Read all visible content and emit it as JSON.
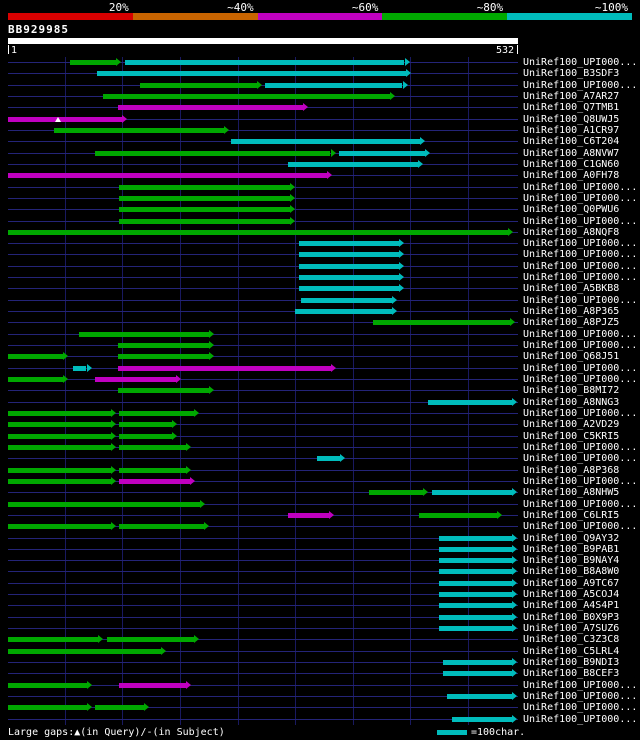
{
  "query": {
    "label": "BB929985",
    "start": "1",
    "end": "532"
  },
  "legend": {
    "gaps_text": "Large gaps:▲(in Query)/-(in Subject)",
    "scale_text": "=100char.",
    "scale_color": "#00bcbc"
  },
  "colors": {
    "green": "#00a800",
    "cyan": "#00bcbc",
    "magenta": "#c000c0"
  },
  "chart_data": {
    "type": "bar",
    "orientation": "horizontal-intervals",
    "title": "BB929985",
    "xlabel": "query position",
    "xlim": [
      1,
      532
    ],
    "grid": true,
    "gridlines": [
      60,
      120,
      180,
      240,
      300,
      360,
      420,
      480
    ],
    "identity_key": [
      {
        "label": "20%",
        "color": "#d80000"
      },
      {
        "label": "~40%",
        "color": "#c86400"
      },
      {
        "label": "~60%",
        "color": "#c000c0"
      },
      {
        "label": "~80%",
        "color": "#00a800"
      },
      {
        "label": "~100%",
        "color": "#00bcbc"
      }
    ],
    "rows": [
      {
        "label": "UniRef100_UPI000...",
        "segments": [
          {
            "color": "green",
            "start": 65,
            "end": 119
          },
          {
            "color": "cyan",
            "start": 123,
            "end": 419
          }
        ]
      },
      {
        "label": "UniRef100_B3SDF3",
        "segments": [
          {
            "color": "cyan",
            "start": 94,
            "end": 421
          }
        ]
      },
      {
        "label": "UniRef100_UPI000...",
        "segments": [
          {
            "color": "green",
            "start": 138,
            "end": 265
          },
          {
            "color": "cyan",
            "start": 269,
            "end": 417
          }
        ]
      },
      {
        "label": "UniRef100_A7AR27",
        "segments": [
          {
            "color": "green",
            "start": 100,
            "end": 404
          }
        ]
      },
      {
        "label": "UniRef100_Q7TMB1",
        "segments": [
          {
            "color": "magenta",
            "start": 115,
            "end": 313
          }
        ]
      },
      {
        "label": "UniRef100_Q8UWJ5",
        "segments": [
          {
            "color": "magenta",
            "start": 1,
            "end": 125
          }
        ],
        "gaps": [
          53
        ]
      },
      {
        "label": "UniRef100_A1CR97",
        "segments": [
          {
            "color": "green",
            "start": 49,
            "end": 231
          }
        ]
      },
      {
        "label": "UniRef100_C6T204",
        "segments": [
          {
            "color": "cyan",
            "start": 233,
            "end": 435
          }
        ]
      },
      {
        "label": "UniRef100_A8NVW7",
        "segments": [
          {
            "color": "green",
            "start": 92,
            "end": 342
          },
          {
            "color": "cyan",
            "start": 346,
            "end": 440
          }
        ]
      },
      {
        "label": "UniRef100_C1GN60",
        "segments": [
          {
            "color": "cyan",
            "start": 292,
            "end": 433
          }
        ]
      },
      {
        "label": "UniRef100_A0FH78",
        "segments": [
          {
            "color": "magenta",
            "start": 1,
            "end": 338
          }
        ]
      },
      {
        "label": "UniRef100_UPI000...",
        "segments": [
          {
            "color": "green",
            "start": 117,
            "end": 300
          }
        ]
      },
      {
        "label": "UniRef100_UPI000...",
        "segments": [
          {
            "color": "green",
            "start": 117,
            "end": 300
          }
        ]
      },
      {
        "label": "UniRef100_Q0PWU6",
        "segments": [
          {
            "color": "green",
            "start": 117,
            "end": 300
          }
        ]
      },
      {
        "label": "UniRef100_UPI000...",
        "segments": [
          {
            "color": "green",
            "start": 117,
            "end": 300
          }
        ]
      },
      {
        "label": "UniRef100_A8NQF8",
        "segments": [
          {
            "color": "green",
            "start": 1,
            "end": 527
          }
        ]
      },
      {
        "label": "UniRef100_UPI000...",
        "segments": [
          {
            "color": "cyan",
            "start": 304,
            "end": 413
          }
        ]
      },
      {
        "label": "UniRef100_UPI000...",
        "segments": [
          {
            "color": "cyan",
            "start": 304,
            "end": 413
          }
        ]
      },
      {
        "label": "UniRef100_UPI000...",
        "segments": [
          {
            "color": "cyan",
            "start": 304,
            "end": 413
          }
        ]
      },
      {
        "label": "UniRef100_UPI000...",
        "segments": [
          {
            "color": "cyan",
            "start": 304,
            "end": 413
          }
        ]
      },
      {
        "label": "UniRef100_A5BKB8",
        "segments": [
          {
            "color": "cyan",
            "start": 304,
            "end": 413
          }
        ]
      },
      {
        "label": "UniRef100_UPI000...",
        "segments": [
          {
            "color": "cyan",
            "start": 306,
            "end": 406
          }
        ]
      },
      {
        "label": "UniRef100_A8P365",
        "segments": [
          {
            "color": "cyan",
            "start": 300,
            "end": 406
          }
        ]
      },
      {
        "label": "UniRef100_A8PJZ5",
        "segments": [
          {
            "color": "green",
            "start": 381,
            "end": 529
          }
        ]
      },
      {
        "label": "UniRef100_UPI000...",
        "segments": [
          {
            "color": "green",
            "start": 75,
            "end": 215
          }
        ]
      },
      {
        "label": "UniRef100_UPI000...",
        "segments": [
          {
            "color": "green",
            "start": 115,
            "end": 215
          }
        ]
      },
      {
        "label": "UniRef100_Q68J51",
        "segments": [
          {
            "color": "green",
            "start": 1,
            "end": 63
          },
          {
            "color": "green",
            "start": 115,
            "end": 215
          }
        ]
      },
      {
        "label": "UniRef100_UPI000...",
        "segments": [
          {
            "color": "cyan",
            "start": 69,
            "end": 88
          },
          {
            "color": "magenta",
            "start": 115,
            "end": 342
          }
        ]
      },
      {
        "label": "UniRef100_UPI000...",
        "segments": [
          {
            "color": "green",
            "start": 1,
            "end": 63
          },
          {
            "color": "magenta",
            "start": 92,
            "end": 181
          }
        ]
      },
      {
        "label": "UniRef100_B8MI72",
        "segments": [
          {
            "color": "green",
            "start": 115,
            "end": 215
          }
        ]
      },
      {
        "label": "UniRef100_A8NNG3",
        "segments": [
          {
            "color": "cyan",
            "start": 438,
            "end": 531
          }
        ]
      },
      {
        "label": "UniRef100_UPI000...",
        "segments": [
          {
            "color": "green",
            "start": 1,
            "end": 113
          },
          {
            "color": "green",
            "start": 117,
            "end": 200
          }
        ]
      },
      {
        "label": "UniRef100_A2VD29",
        "segments": [
          {
            "color": "green",
            "start": 1,
            "end": 113
          },
          {
            "color": "green",
            "start": 117,
            "end": 177
          }
        ]
      },
      {
        "label": "UniRef100_C5KRI5",
        "segments": [
          {
            "color": "green",
            "start": 1,
            "end": 113
          },
          {
            "color": "green",
            "start": 117,
            "end": 177
          }
        ]
      },
      {
        "label": "UniRef100_UPI000...",
        "segments": [
          {
            "color": "green",
            "start": 1,
            "end": 113
          },
          {
            "color": "green",
            "start": 117,
            "end": 192
          }
        ]
      },
      {
        "label": "UniRef100_UPI000...",
        "segments": [
          {
            "color": "cyan",
            "start": 323,
            "end": 352
          }
        ]
      },
      {
        "label": "UniRef100_A8P368",
        "segments": [
          {
            "color": "green",
            "start": 1,
            "end": 113
          },
          {
            "color": "green",
            "start": 117,
            "end": 192
          }
        ]
      },
      {
        "label": "UniRef100_UPI000...",
        "segments": [
          {
            "color": "green",
            "start": 1,
            "end": 113
          },
          {
            "color": "magenta",
            "start": 117,
            "end": 196
          }
        ]
      },
      {
        "label": "UniRef100_A8NHW5",
        "segments": [
          {
            "color": "green",
            "start": 377,
            "end": 438
          },
          {
            "color": "cyan",
            "start": 442,
            "end": 531
          }
        ]
      },
      {
        "label": "UniRef100_UPI000...",
        "segments": [
          {
            "color": "green",
            "start": 1,
            "end": 206
          }
        ]
      },
      {
        "label": "UniRef100_C6LRI5",
        "segments": [
          {
            "color": "magenta",
            "start": 292,
            "end": 340
          },
          {
            "color": "green",
            "start": 429,
            "end": 515
          }
        ]
      },
      {
        "label": "UniRef100_UPI000...",
        "segments": [
          {
            "color": "green",
            "start": 1,
            "end": 113
          },
          {
            "color": "green",
            "start": 117,
            "end": 210
          }
        ]
      },
      {
        "label": "UniRef100_Q9AY32",
        "segments": [
          {
            "color": "cyan",
            "start": 450,
            "end": 531
          }
        ]
      },
      {
        "label": "UniRef100_B9PAB1",
        "segments": [
          {
            "color": "cyan",
            "start": 450,
            "end": 531
          }
        ]
      },
      {
        "label": "UniRef100_B9NAY4",
        "segments": [
          {
            "color": "cyan",
            "start": 450,
            "end": 531
          }
        ]
      },
      {
        "label": "UniRef100_B8A8W0",
        "segments": [
          {
            "color": "cyan",
            "start": 450,
            "end": 531
          }
        ]
      },
      {
        "label": "UniRef100_A9TC67",
        "segments": [
          {
            "color": "cyan",
            "start": 450,
            "end": 531
          }
        ]
      },
      {
        "label": "UniRef100_A5COJ4",
        "segments": [
          {
            "color": "cyan",
            "start": 450,
            "end": 531
          }
        ]
      },
      {
        "label": "UniRef100_A4S4P1",
        "segments": [
          {
            "color": "cyan",
            "start": 450,
            "end": 531
          }
        ]
      },
      {
        "label": "UniRef100_B0X9P3",
        "segments": [
          {
            "color": "cyan",
            "start": 450,
            "end": 531
          }
        ]
      },
      {
        "label": "UniRef100_A7SUZ6",
        "segments": [
          {
            "color": "cyan",
            "start": 450,
            "end": 531
          }
        ]
      },
      {
        "label": "UniRef100_C3Z3C8",
        "segments": [
          {
            "color": "green",
            "start": 1,
            "end": 100
          },
          {
            "color": "green",
            "start": 104,
            "end": 200
          }
        ]
      },
      {
        "label": "UniRef100_C5LRL4",
        "segments": [
          {
            "color": "green",
            "start": 1,
            "end": 165
          }
        ]
      },
      {
        "label": "UniRef100_B9NDI3",
        "segments": [
          {
            "color": "cyan",
            "start": 454,
            "end": 531
          }
        ]
      },
      {
        "label": "UniRef100_B8CEF3",
        "segments": [
          {
            "color": "cyan",
            "start": 454,
            "end": 531
          }
        ]
      },
      {
        "label": "UniRef100_UPI000...",
        "segments": [
          {
            "color": "green",
            "start": 1,
            "end": 88
          },
          {
            "color": "magenta",
            "start": 117,
            "end": 192
          }
        ]
      },
      {
        "label": "UniRef100_UPI000...",
        "segments": [
          {
            "color": "cyan",
            "start": 458,
            "end": 531
          }
        ]
      },
      {
        "label": "UniRef100_UPI000...",
        "segments": [
          {
            "color": "green",
            "start": 1,
            "end": 88
          },
          {
            "color": "green",
            "start": 92,
            "end": 148
          }
        ]
      },
      {
        "label": "UniRef100_UPI000...",
        "segments": [
          {
            "color": "cyan",
            "start": 463,
            "end": 531
          }
        ]
      }
    ]
  }
}
